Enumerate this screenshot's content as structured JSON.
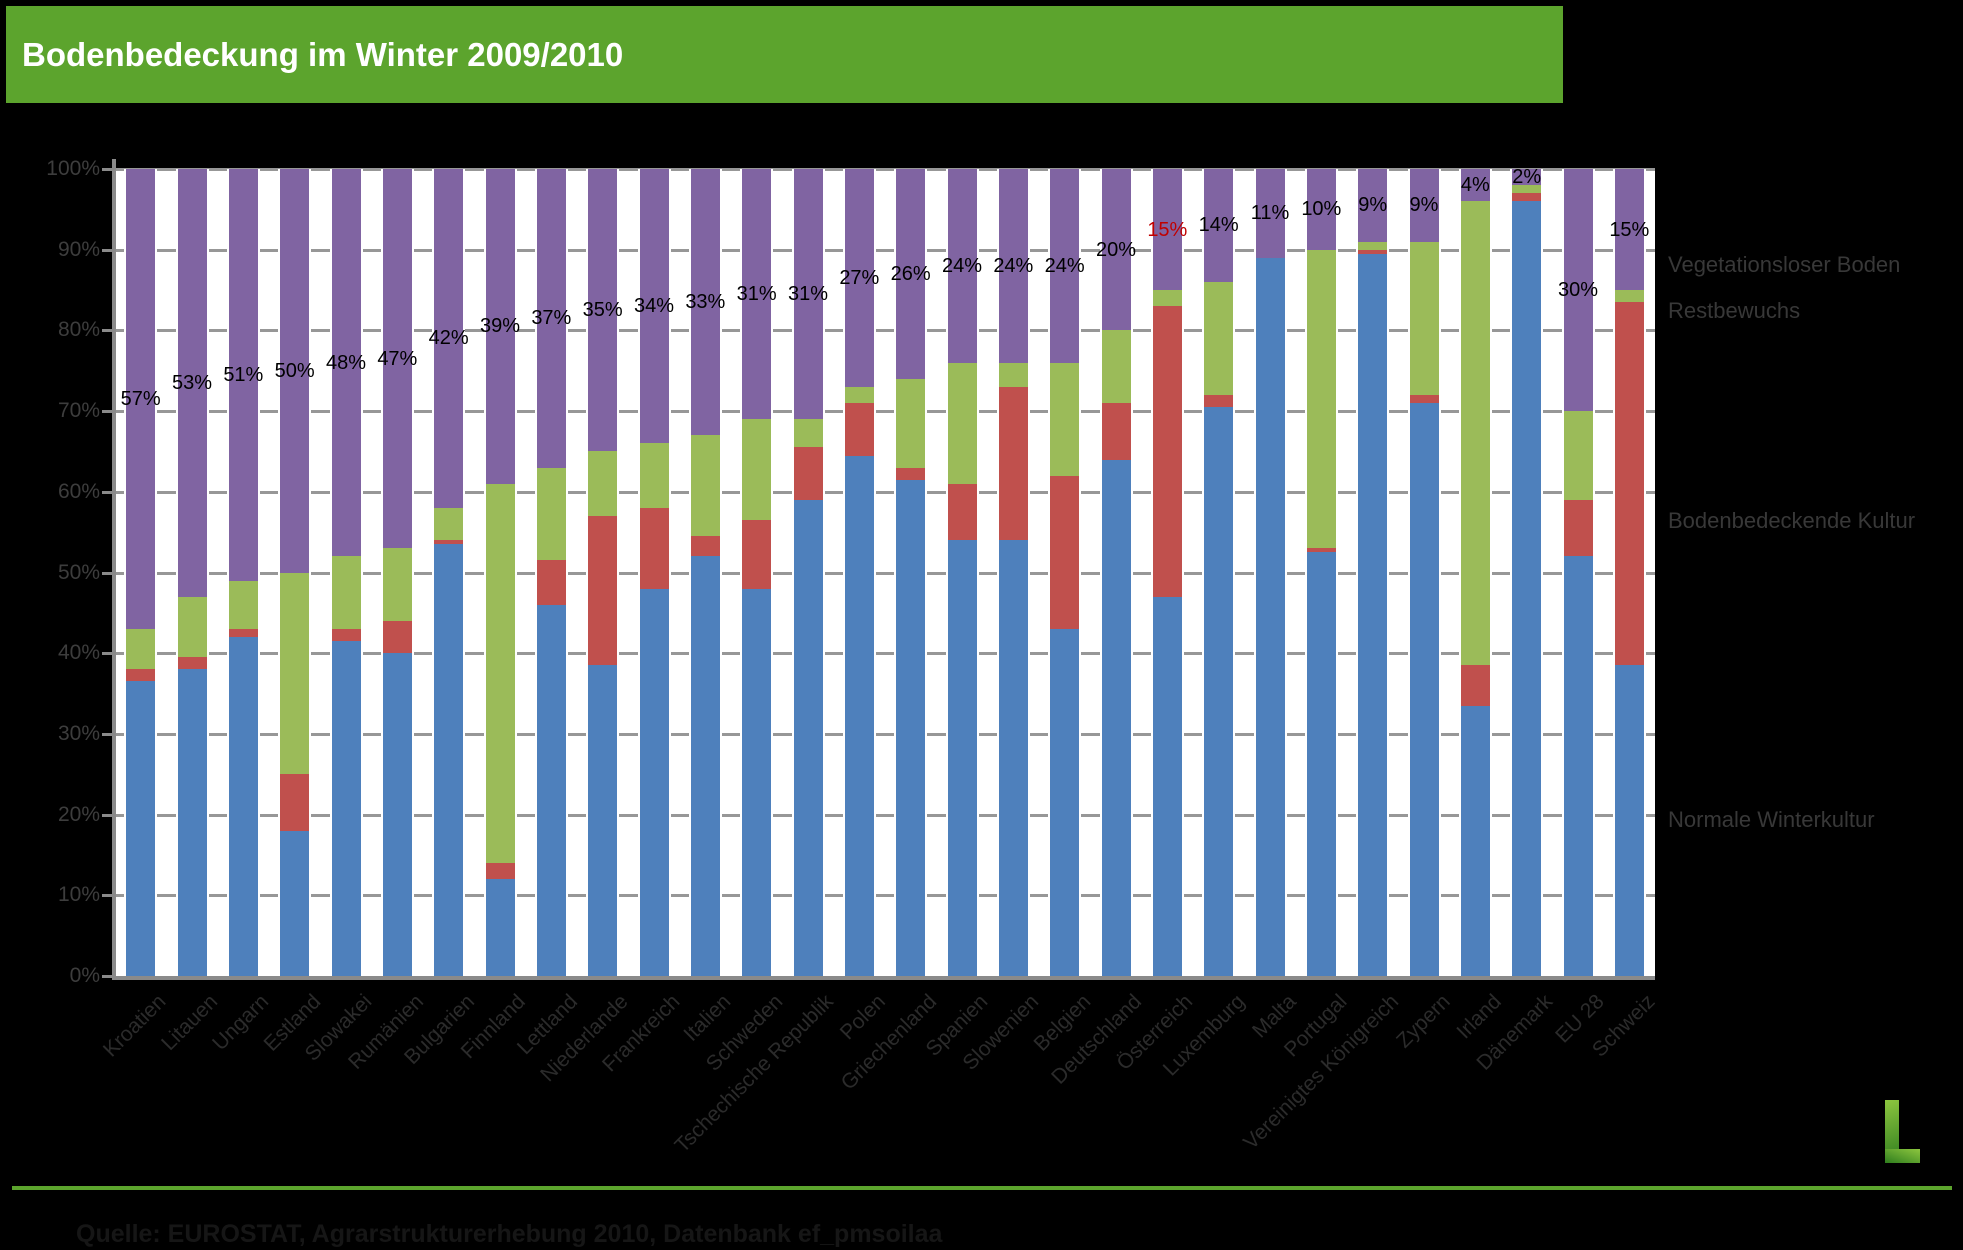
{
  "header": {
    "title": "Bodenbedeckung im Winter 2009/2010"
  },
  "chart_data": {
    "type": "bar",
    "stacked": true,
    "title": "Bodenbedeckung im Winter 2009/2010",
    "unit": "%",
    "ylim": [
      0,
      100
    ],
    "grid": true,
    "ytick_labels": [
      "0%",
      "10%",
      "20%",
      "30%",
      "40%",
      "50%",
      "60%",
      "70%",
      "80%",
      "90%",
      "100%"
    ],
    "categories": [
      "Kroatien",
      "Litauen",
      "Ungarn",
      "Estland",
      "Slowakei",
      "Rumänien",
      "Bulgarien",
      "Finnland",
      "Lettland",
      "Niederlande",
      "Frankreich",
      "Italien",
      "Schweden",
      "Tschechische Republik",
      "Polen",
      "Griechenland",
      "Spanien",
      "Slowenien",
      "Belgien",
      "Deutschland",
      "Österreich",
      "Luxemburg",
      "Malta",
      "Portugal",
      "Vereinigtes Königreich",
      "Zypern",
      "Irland",
      "Dänemark",
      "EU 28",
      "Schweiz"
    ],
    "series": [
      {
        "name": "Normale Winterkultur",
        "color": "#4E80BC",
        "values": [
          36.5,
          38,
          42,
          18,
          41.5,
          40,
          53.5,
          12,
          46,
          38.5,
          48,
          52,
          48,
          59,
          64.5,
          61.5,
          54,
          54,
          43,
          64,
          47,
          70.5,
          89,
          52.5,
          89.5,
          71,
          33.5,
          96,
          52,
          38.5
        ]
      },
      {
        "name": "Bodenbedeckende Kultur",
        "color": "#C0504D",
        "values": [
          1.5,
          1.5,
          1,
          7,
          1.5,
          4,
          0.5,
          2,
          5.5,
          18.5,
          10,
          2.5,
          8.5,
          6.5,
          6.5,
          1.5,
          7,
          19,
          19,
          7,
          36,
          1.5,
          0,
          0.5,
          0.5,
          1,
          5,
          1,
          7,
          45
        ]
      },
      {
        "name": "Restbewuchs",
        "color": "#9BBB59",
        "values": [
          5,
          7.5,
          6,
          25,
          9,
          9,
          4,
          47,
          11.5,
          8,
          8,
          12.5,
          12.5,
          3.5,
          2,
          11,
          15,
          3,
          14,
          9,
          2,
          14,
          0,
          37,
          1,
          19,
          57.5,
          1,
          11,
          1.5
        ]
      },
      {
        "name": "Vegetationsloser Boden",
        "color": "#8064A2",
        "values": [
          57,
          53,
          51,
          50,
          48,
          47,
          42,
          39,
          37,
          35,
          34,
          33,
          31,
          31,
          27,
          26,
          24,
          24,
          24,
          20,
          15,
          14,
          11,
          10,
          9,
          9,
          4,
          2,
          30,
          15
        ]
      }
    ],
    "data_labels": {
      "series": "Vegetationsloser Boden",
      "values": [
        "57%",
        "53%",
        "51%",
        "50%",
        "48%",
        "47%",
        "42%",
        "39%",
        "37%",
        "35%",
        "34%",
        "33%",
        "31%",
        "31%",
        "27%",
        "26%",
        "24%",
        "24%",
        "24%",
        "20%",
        "15%",
        "14%",
        "11%",
        "10%",
        "9%",
        "9%",
        "4%",
        "2%",
        "30%",
        "15%"
      ],
      "default_color": "#000000",
      "special": {
        "index": 20,
        "color": "#C00000"
      }
    },
    "legend": {
      "position": "right",
      "entries": [
        "Vegetationsloser Boden",
        "Restbewuchs",
        "Bodenbedeckende Kultur",
        "Normale Winterkultur"
      ]
    }
  },
  "footer": {
    "source": "Quelle: EUROSTAT, Agrarstrukturerhebung 2010, Datenbank ef_pmsoilaa"
  },
  "logo": {
    "glyph": "L"
  },
  "colors": {
    "page_bg": "#000000",
    "header_bg": "#5CA42D",
    "accent_line": "#5CA42D",
    "plot_bg": "#FFFFFF",
    "grid": "#979797",
    "axis": "#8A8A8A",
    "ytick_label": "#3D3D3D",
    "category_label": "#2B2B2B",
    "legend_label": "#383838",
    "source_text": "#161616",
    "logo_green_light": "#8DC63F",
    "logo_green_dark": "#2E7D1E"
  }
}
